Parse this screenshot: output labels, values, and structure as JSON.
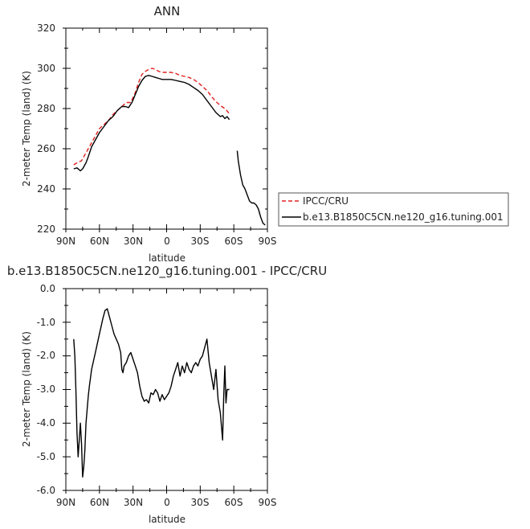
{
  "chart_data": [
    {
      "type": "line",
      "title": "ANN",
      "xlabel": "latitude",
      "ylabel": "2-meter Temp (land) (K)",
      "xlim": [
        90,
        -90
      ],
      "ylim": [
        220,
        320
      ],
      "xticks": [
        90,
        60,
        30,
        0,
        -30,
        -60,
        -90
      ],
      "xtick_labels": [
        "90N",
        "60N",
        "30N",
        "0",
        "30S",
        "60S",
        "90S"
      ],
      "yticks": [
        220,
        240,
        260,
        280,
        300,
        320
      ],
      "ytick_labels": [
        "220",
        "240",
        "260",
        "280",
        "300",
        "320"
      ],
      "legend_position": "right",
      "series": [
        {
          "name": "IPCC/CRU",
          "color": "#e02020",
          "style": "dashed",
          "x": [
            83,
            80,
            76,
            72,
            68,
            64,
            60,
            56,
            52,
            48,
            44,
            40,
            36,
            32,
            28,
            25,
            22,
            19,
            16,
            13,
            10,
            7,
            4,
            0,
            -4,
            -8,
            -12,
            -16,
            -20,
            -24,
            -28,
            -32,
            -36,
            -40,
            -44,
            -48,
            -52,
            -56
          ],
          "y": [
            252,
            253,
            254,
            258,
            262,
            266,
            270,
            272,
            274,
            277,
            279,
            281,
            283,
            283,
            288,
            293,
            297,
            298.5,
            299.5,
            300,
            299.5,
            298.5,
            298,
            298,
            298,
            297.5,
            296.5,
            296,
            295.5,
            294.5,
            293,
            291,
            289,
            286,
            283.5,
            281.5,
            280,
            277.5
          ]
        },
        {
          "name": "b.e13.B1850C5CN.ne120_g16.tuning.001",
          "color": "#000000",
          "style": "solid",
          "x": [
            83,
            80,
            77,
            75,
            72,
            70,
            67,
            64,
            60,
            56,
            52,
            48,
            44,
            40,
            37,
            34,
            31,
            28,
            25,
            22,
            19,
            16,
            13,
            10,
            7,
            4,
            0,
            -4,
            -8,
            -12,
            -16,
            -20,
            -24,
            -28,
            -32,
            -36,
            -40,
            -44,
            -48,
            -50,
            -52,
            -54,
            -56
          ],
          "y": [
            250,
            250.5,
            249,
            250,
            253,
            256,
            261,
            264,
            268,
            271,
            274,
            276,
            279,
            281,
            281,
            280.5,
            283,
            287,
            291,
            294,
            296,
            296.5,
            296,
            295.5,
            295,
            294.5,
            294.5,
            294.5,
            294,
            293.5,
            293,
            292,
            290.5,
            289,
            287,
            284,
            281,
            278,
            276,
            276.5,
            275,
            276,
            274.5
          ]
        },
        {
          "name": "",
          "color": "#000000",
          "style": "solid",
          "x": [
            -63,
            -64,
            -66,
            -68,
            -70,
            -72,
            -74,
            -76,
            -78,
            -80,
            -82,
            -84,
            -86,
            -88
          ],
          "y": [
            259,
            254,
            247,
            242,
            240,
            237,
            234,
            233,
            233,
            232,
            230,
            226,
            223,
            222
          ]
        }
      ]
    },
    {
      "type": "line",
      "title": "b.e13.B1850C5CN.ne120_g16.tuning.001 - IPCC/CRU",
      "xlabel": "latitude",
      "ylabel": "2-meter Temp (land) (K)",
      "xlim": [
        90,
        -90
      ],
      "ylim": [
        -6.0,
        0.0
      ],
      "xticks": [
        90,
        60,
        30,
        0,
        -30,
        -60,
        -90
      ],
      "xtick_labels": [
        "90N",
        "60N",
        "30N",
        "0",
        "30S",
        "60S",
        "90S"
      ],
      "yticks": [
        -6.0,
        -5.0,
        -4.0,
        -3.0,
        -2.0,
        -1.0,
        0.0
      ],
      "ytick_labels": [
        "-6.0",
        "-5.0",
        "-4.0",
        "-3.0",
        "-2.0",
        "-1.0",
        "0.0"
      ],
      "series": [
        {
          "name": "",
          "color": "#000000",
          "style": "solid",
          "x": [
            83,
            82,
            81,
            80,
            79,
            78,
            77,
            76,
            75,
            74,
            73,
            72,
            71,
            70,
            69,
            67,
            65,
            63,
            61,
            59,
            57,
            55,
            53,
            51,
            49,
            47,
            45,
            43,
            41,
            40,
            39,
            38,
            36,
            34,
            32,
            30,
            28,
            26,
            24,
            22,
            20,
            18,
            16,
            14,
            12,
            10,
            8,
            6,
            4,
            2,
            0,
            -2,
            -4,
            -6,
            -8,
            -10,
            -12,
            -14,
            -16,
            -18,
            -20,
            -22,
            -24,
            -26,
            -28,
            -30,
            -32,
            -34,
            -36,
            -38,
            -40,
            -42,
            -44,
            -46,
            -48,
            -50,
            -51,
            -52,
            -53,
            -54,
            -55,
            -56
          ],
          "y": [
            -1.5,
            -2.0,
            -3.0,
            -4.3,
            -5.0,
            -4.5,
            -4.0,
            -4.6,
            -5.6,
            -5.3,
            -4.8,
            -4.0,
            -3.6,
            -3.2,
            -2.9,
            -2.4,
            -2.1,
            -1.8,
            -1.5,
            -1.2,
            -0.9,
            -0.65,
            -0.6,
            -0.85,
            -1.1,
            -1.35,
            -1.5,
            -1.65,
            -1.9,
            -2.4,
            -2.5,
            -2.3,
            -2.2,
            -2.0,
            -1.9,
            -2.1,
            -2.3,
            -2.5,
            -2.9,
            -3.2,
            -3.35,
            -3.3,
            -3.4,
            -3.1,
            -3.15,
            -3.0,
            -3.1,
            -3.35,
            -3.15,
            -3.3,
            -3.2,
            -3.1,
            -2.9,
            -2.6,
            -2.4,
            -2.2,
            -2.6,
            -2.3,
            -2.5,
            -2.2,
            -2.4,
            -2.5,
            -2.3,
            -2.2,
            -2.3,
            -2.1,
            -2.0,
            -1.75,
            -1.5,
            -2.2,
            -2.6,
            -3.0,
            -2.4,
            -3.3,
            -3.7,
            -4.5,
            -3.2,
            -2.3,
            -3.4,
            -3.0,
            -3.0,
            -3.0
          ]
        }
      ]
    }
  ]
}
